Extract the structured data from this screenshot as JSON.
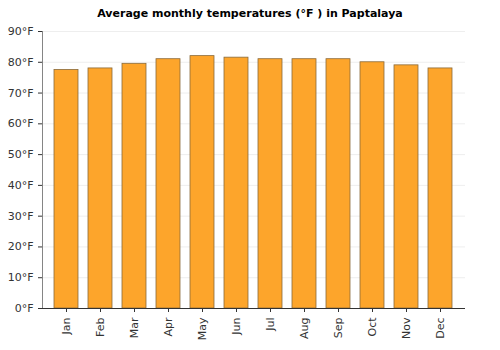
{
  "chart_data": {
    "type": "bar",
    "title": "Average monthly temperatures (°F ) in Paptalaya",
    "categories": [
      "Jan",
      "Feb",
      "Mar",
      "Apr",
      "May",
      "Jun",
      "Jul",
      "Aug",
      "Sep",
      "Oct",
      "Nov",
      "Dec"
    ],
    "values": [
      77.5,
      78,
      79.5,
      81,
      82,
      81.5,
      81,
      81,
      81,
      80,
      79,
      78
    ],
    "color": "#fda52b",
    "ylim": [
      0,
      90
    ],
    "yticks": [
      {
        "value": 0,
        "label": "0°F"
      },
      {
        "value": 10,
        "label": "10°F"
      },
      {
        "value": 20,
        "label": "20°F"
      },
      {
        "value": 30,
        "label": "30°F"
      },
      {
        "value": 40,
        "label": "40°F"
      },
      {
        "value": 50,
        "label": "50°F"
      },
      {
        "value": 60,
        "label": "60°F"
      },
      {
        "value": 70,
        "label": "70°F"
      },
      {
        "value": 80,
        "label": "80°F"
      },
      {
        "value": 90,
        "label": "90°F"
      }
    ],
    "grid": true
  }
}
